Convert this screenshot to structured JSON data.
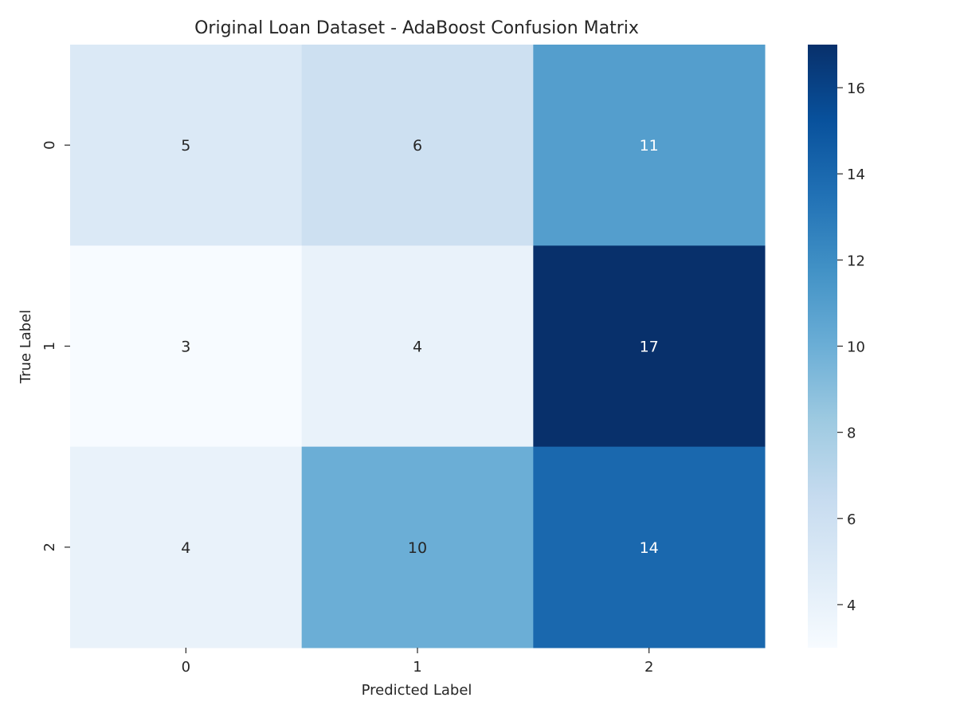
{
  "chart_data": {
    "type": "heatmap",
    "title": "Original Loan Dataset - AdaBoost Confusion Matrix",
    "xlabel": "Predicted Label",
    "ylabel": "True Label",
    "x_ticks": [
      "0",
      "1",
      "2"
    ],
    "y_ticks": [
      "0",
      "1",
      "2"
    ],
    "values": [
      [
        5,
        6,
        11
      ],
      [
        3,
        4,
        17
      ],
      [
        4,
        10,
        14
      ]
    ],
    "colormap": "Blues",
    "colorbar": {
      "range": [
        3,
        17
      ],
      "ticks": [
        4,
        6,
        8,
        10,
        12,
        14,
        16
      ]
    },
    "annotations": true,
    "grid": false
  }
}
